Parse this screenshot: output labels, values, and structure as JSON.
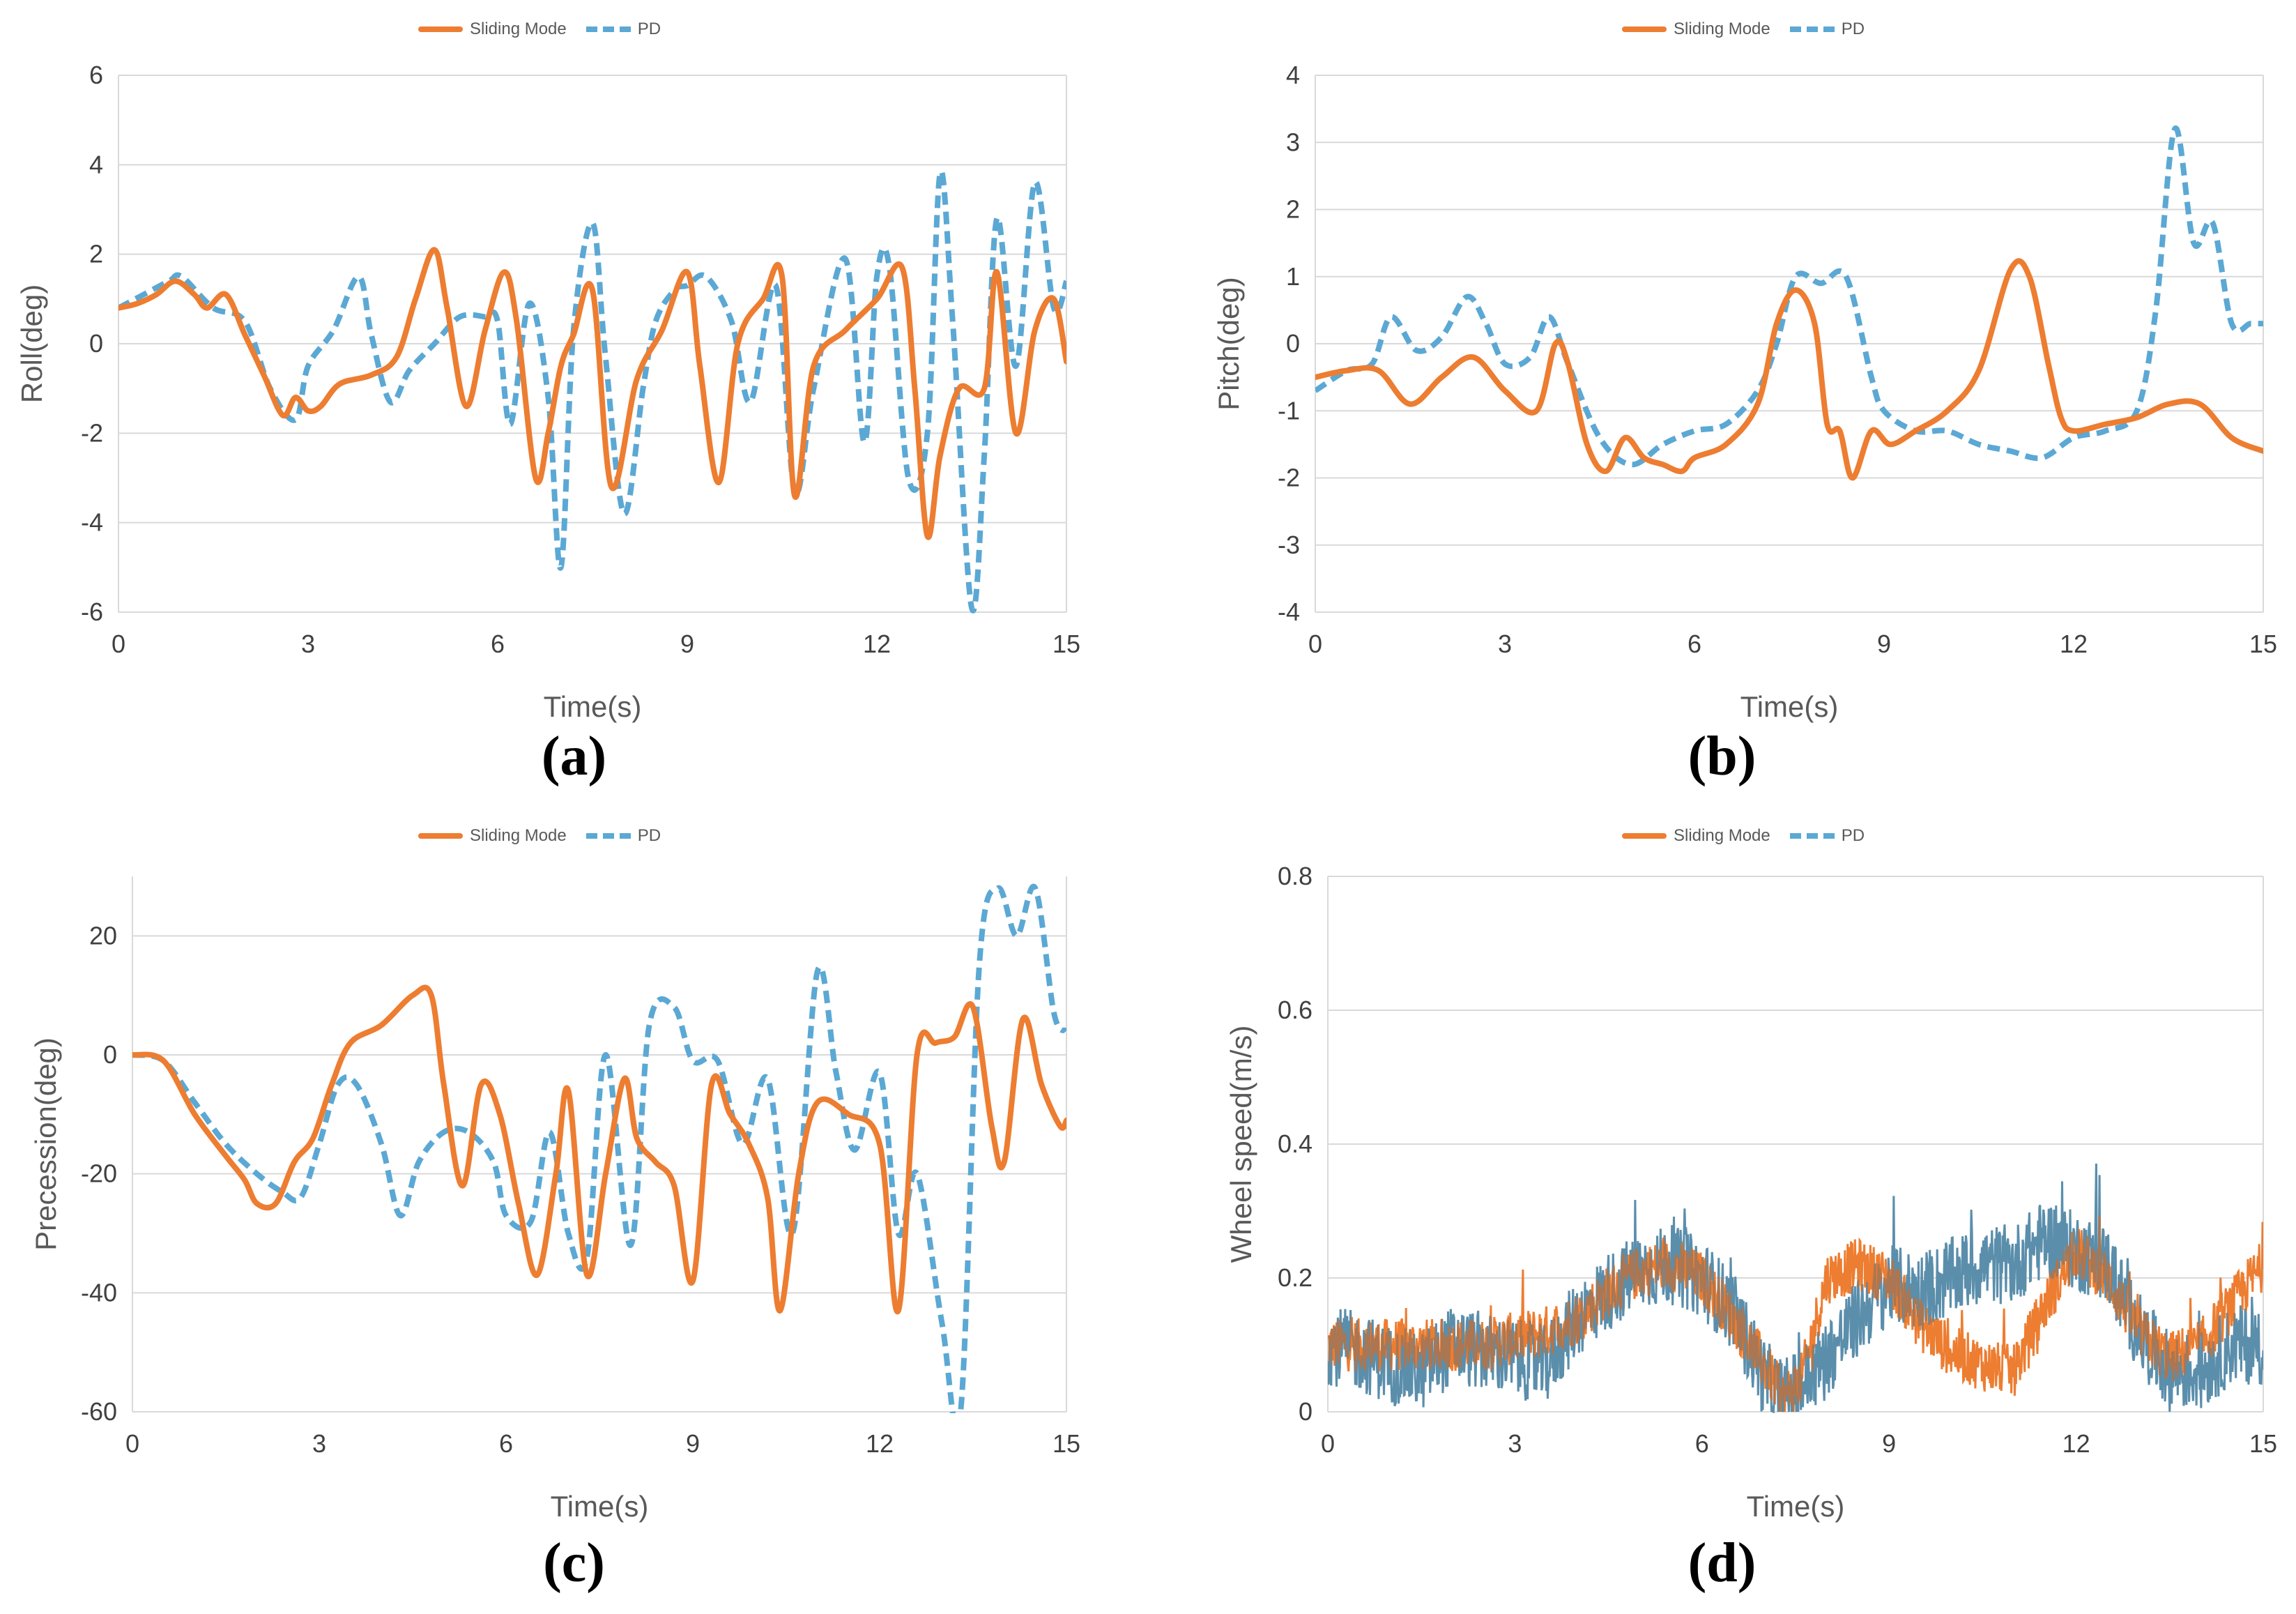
{
  "legend": {
    "sliding_label": "Sliding Mode",
    "pd_label": "PD"
  },
  "colors": {
    "sliding": "#ED7D31",
    "pd": "#5BA8D4",
    "grid": "#D9D9D9",
    "overlap": "#5A6E7A"
  },
  "captions": {
    "a": "(a)",
    "b": "(b)",
    "c": "(c)",
    "d": "(d)"
  },
  "chart_data": [
    {
      "id": "a",
      "type": "line",
      "title": "",
      "xlabel": "Time(s)",
      "ylabel": "Roll(deg)",
      "xlim": [
        0,
        15
      ],
      "ylim": [
        -6,
        6
      ],
      "xticks": [
        0,
        3,
        6,
        9,
        12,
        15
      ],
      "yticks": [
        -6,
        -4,
        -2,
        0,
        2,
        4,
        6
      ],
      "grid": true,
      "legend_position": "top-center",
      "series": [
        {
          "name": "Sliding Mode",
          "style": "solid",
          "x": [
            0,
            0.3,
            0.6,
            0.9,
            1.2,
            1.4,
            1.7,
            2.0,
            2.3,
            2.6,
            2.8,
            3.0,
            3.2,
            3.5,
            4.0,
            4.4,
            4.7,
            5.0,
            5.2,
            5.5,
            5.8,
            6.1,
            6.3,
            6.6,
            6.8,
            7.0,
            7.2,
            7.5,
            7.8,
            8.2,
            8.6,
            9.0,
            9.2,
            9.5,
            9.8,
            10.2,
            10.5,
            10.7,
            11.0,
            11.5,
            12.0,
            12.4,
            12.6,
            12.8,
            13.0,
            13.3,
            13.7,
            13.9,
            14.2,
            14.5,
            14.8,
            15.0
          ],
          "y": [
            0.8,
            0.9,
            1.1,
            1.4,
            1.1,
            0.8,
            1.1,
            0.2,
            -0.7,
            -1.6,
            -1.2,
            -1.5,
            -1.4,
            -0.9,
            -0.7,
            -0.3,
            1.0,
            2.1,
            0.8,
            -1.4,
            0.3,
            1.6,
            0.5,
            -3.0,
            -2.0,
            -0.5,
            0.2,
            1.2,
            -3.2,
            -0.8,
            0.3,
            1.6,
            -0.5,
            -3.1,
            0.0,
            1.0,
            1.5,
            -3.4,
            -0.5,
            0.3,
            1.0,
            1.7,
            -1.0,
            -4.3,
            -2.5,
            -1.0,
            -1.0,
            1.6,
            -2.0,
            0.3,
            1.0,
            -0.4
          ]
        },
        {
          "name": "PD",
          "style": "dashed",
          "x": [
            0,
            0.4,
            0.8,
            1.0,
            1.5,
            2.0,
            2.4,
            2.8,
            3.0,
            3.4,
            3.8,
            4.0,
            4.3,
            4.6,
            5.0,
            5.4,
            5.8,
            6.0,
            6.2,
            6.5,
            6.8,
            7.0,
            7.2,
            7.5,
            7.7,
            8.0,
            8.3,
            8.5,
            8.8,
            9.0,
            9.3,
            9.7,
            10.0,
            10.4,
            10.7,
            11.0,
            11.5,
            11.8,
            12.0,
            12.2,
            12.5,
            12.8,
            13.0,
            13.2,
            13.5,
            13.7,
            13.9,
            14.2,
            14.5,
            14.8,
            15.0
          ],
          "y": [
            0.8,
            1.1,
            1.4,
            1.5,
            0.8,
            0.5,
            -1.0,
            -1.7,
            -0.5,
            0.3,
            1.5,
            0.2,
            -1.3,
            -0.6,
            0.0,
            0.6,
            0.6,
            0.5,
            -1.8,
            0.9,
            -1.2,
            -5.0,
            0.3,
            2.7,
            -0.2,
            -3.8,
            -1.0,
            0.5,
            1.2,
            1.3,
            1.5,
            0.5,
            -1.3,
            1.3,
            -3.3,
            -1.0,
            1.9,
            -2.2,
            1.5,
            1.7,
            -3.0,
            -2.0,
            3.8,
            0.5,
            -5.9,
            -2.5,
            2.8,
            -0.5,
            3.6,
            0.8,
            1.4
          ]
        }
      ]
    },
    {
      "id": "b",
      "type": "line",
      "title": "",
      "xlabel": "Time(s)",
      "ylabel": "Pitch(deg)",
      "xlim": [
        0,
        15
      ],
      "ylim": [
        -4,
        4
      ],
      "xticks": [
        0,
        3,
        6,
        9,
        12,
        15
      ],
      "yticks": [
        -4,
        -3,
        -2,
        -1,
        0,
        1,
        2,
        3,
        4
      ],
      "grid": true,
      "legend_position": "top-center",
      "series": [
        {
          "name": "Sliding Mode",
          "style": "solid",
          "x": [
            0,
            0.5,
            1.0,
            1.5,
            2.0,
            2.5,
            3.0,
            3.5,
            3.8,
            4.0,
            4.3,
            4.6,
            4.9,
            5.2,
            5.5,
            5.8,
            6.0,
            6.5,
            7.0,
            7.3,
            7.6,
            7.9,
            8.1,
            8.3,
            8.5,
            8.8,
            9.1,
            9.5,
            10.0,
            10.5,
            11.0,
            11.3,
            11.6,
            11.8,
            12.0,
            12.5,
            13.0,
            13.5,
            14.0,
            14.5,
            15.0
          ],
          "y": [
            -0.5,
            -0.4,
            -0.4,
            -0.9,
            -0.5,
            -0.2,
            -0.7,
            -1.0,
            0.0,
            -0.3,
            -1.5,
            -1.9,
            -1.4,
            -1.7,
            -1.8,
            -1.9,
            -1.7,
            -1.5,
            -0.9,
            0.3,
            0.8,
            0.3,
            -1.2,
            -1.3,
            -2.0,
            -1.3,
            -1.5,
            -1.3,
            -1.0,
            -0.4,
            1.1,
            1.0,
            -0.3,
            -1.1,
            -1.3,
            -1.2,
            -1.1,
            -0.9,
            -0.9,
            -1.4,
            -1.6
          ]
        },
        {
          "name": "PD",
          "style": "dashed",
          "x": [
            0,
            0.5,
            0.9,
            1.2,
            1.6,
            2.0,
            2.4,
            2.7,
            3.0,
            3.4,
            3.7,
            4.0,
            4.5,
            5.0,
            5.5,
            6.0,
            6.5,
            7.0,
            7.3,
            7.6,
            8.0,
            8.4,
            8.8,
            9.0,
            9.5,
            10.0,
            10.5,
            11.0,
            11.5,
            12.0,
            12.5,
            13.0,
            13.3,
            13.6,
            13.9,
            14.2,
            14.5,
            14.8,
            15.0
          ],
          "y": [
            -0.7,
            -0.4,
            -0.3,
            0.4,
            -0.1,
            0.1,
            0.7,
            0.3,
            -0.3,
            -0.2,
            0.4,
            -0.3,
            -1.4,
            -1.8,
            -1.5,
            -1.3,
            -1.2,
            -0.7,
            0.0,
            1.0,
            0.9,
            1.0,
            -0.5,
            -1.0,
            -1.3,
            -1.3,
            -1.5,
            -1.6,
            -1.7,
            -1.4,
            -1.3,
            -1.0,
            0.5,
            3.2,
            1.5,
            1.8,
            0.3,
            0.3,
            0.3
          ]
        }
      ]
    },
    {
      "id": "c",
      "type": "line",
      "title": "",
      "xlabel": "Time(s)",
      "ylabel": "Precession(deg)",
      "xlim": [
        0,
        15
      ],
      "ylim": [
        -60,
        30
      ],
      "xticks": [
        0,
        3,
        6,
        9,
        12,
        15
      ],
      "yticks": [
        -60,
        -40,
        -20,
        0,
        20
      ],
      "grid": true,
      "legend_position": "top-center",
      "series": [
        {
          "name": "Sliding Mode",
          "style": "solid",
          "x": [
            0,
            0.5,
            1.0,
            1.5,
            1.8,
            2.0,
            2.3,
            2.6,
            2.9,
            3.2,
            3.5,
            4.0,
            4.5,
            4.8,
            5.0,
            5.3,
            5.6,
            5.9,
            6.2,
            6.5,
            6.8,
            7.0,
            7.3,
            7.6,
            7.9,
            8.1,
            8.4,
            8.7,
            9.0,
            9.3,
            9.6,
            9.9,
            10.2,
            10.4,
            10.7,
            11.0,
            11.5,
            12.0,
            12.3,
            12.6,
            12.9,
            13.2,
            13.5,
            13.8,
            14.0,
            14.3,
            14.6,
            14.9,
            15.0
          ],
          "y": [
            0,
            -1,
            -10,
            -17,
            -21,
            -25,
            -25,
            -18,
            -14,
            -5,
            2,
            5,
            10,
            10,
            -5,
            -22,
            -5,
            -10,
            -25,
            -37,
            -20,
            -6,
            -37,
            -20,
            -4,
            -14,
            -18,
            -22,
            -38,
            -5,
            -10,
            -15,
            -24,
            -43,
            -20,
            -8,
            -10,
            -15,
            -43,
            0,
            2,
            3,
            8,
            -12,
            -18,
            6,
            -5,
            -12,
            -11
          ]
        },
        {
          "name": "PD",
          "style": "dashed",
          "x": [
            0,
            0.5,
            1.0,
            1.5,
            2.0,
            2.4,
            2.7,
            3.0,
            3.3,
            3.6,
            4.0,
            4.3,
            4.6,
            5.0,
            5.4,
            5.8,
            6.0,
            6.4,
            6.7,
            7.0,
            7.3,
            7.6,
            8.0,
            8.3,
            8.7,
            9.0,
            9.4,
            9.8,
            10.2,
            10.6,
            11.0,
            11.3,
            11.6,
            12.0,
            12.3,
            12.6,
            13.0,
            13.3,
            13.6,
            13.9,
            14.2,
            14.5,
            14.8,
            15.0
          ],
          "y": [
            0,
            -1,
            -8,
            -15,
            -20,
            -23,
            -24,
            -15,
            -5,
            -5,
            -15,
            -27,
            -18,
            -13,
            -13,
            -18,
            -27,
            -28,
            -13,
            -30,
            -34,
            0,
            -32,
            5,
            8,
            -1,
            -1,
            -15,
            -4,
            -30,
            14,
            -3,
            -16,
            -3,
            -30,
            -20,
            -45,
            -60,
            15,
            28,
            20,
            28,
            7,
            4
          ]
        }
      ]
    },
    {
      "id": "d",
      "type": "line",
      "title": "",
      "xlabel": "Time(s)",
      "ylabel": "Wheel speed(m/s)",
      "xlim": [
        0,
        15
      ],
      "ylim": [
        0,
        0.8
      ],
      "xticks": [
        0,
        3,
        6,
        9,
        12,
        15
      ],
      "yticks": [
        0,
        0.2,
        0.4,
        0.6,
        0.8
      ],
      "grid": true,
      "legend_position": "top-center",
      "series": [
        {
          "name": "Sliding Mode",
          "style": "noisy-band",
          "x": [
            0,
            0.5,
            1.0,
            1.5,
            2.0,
            2.5,
            3.0,
            3.5,
            4.0,
            4.5,
            5.0,
            5.5,
            6.0,
            6.5,
            7.0,
            7.3,
            7.6,
            8.0,
            8.5,
            9.0,
            9.5,
            10.0,
            10.5,
            11.0,
            11.5,
            12.0,
            12.5,
            13.0,
            13.5,
            14.0,
            14.5,
            15.0
          ],
          "y": [
            0.1,
            0.1,
            0.1,
            0.1,
            0.1,
            0.1,
            0.11,
            0.12,
            0.14,
            0.18,
            0.21,
            0.22,
            0.2,
            0.14,
            0.07,
            0.02,
            0.05,
            0.2,
            0.22,
            0.2,
            0.13,
            0.09,
            0.07,
            0.06,
            0.16,
            0.24,
            0.2,
            0.12,
            0.08,
            0.1,
            0.16,
            0.22
          ],
          "spread": 0.04
        },
        {
          "name": "PD",
          "style": "noisy-band",
          "x": [
            0,
            0.5,
            1.0,
            1.5,
            2.0,
            2.5,
            3.0,
            3.5,
            4.0,
            4.5,
            5.0,
            5.5,
            6.0,
            6.5,
            7.0,
            7.3,
            7.6,
            8.0,
            8.5,
            9.0,
            9.5,
            10.0,
            10.5,
            11.0,
            11.5,
            12.0,
            12.5,
            13.0,
            13.5,
            14.0,
            14.5,
            15.0
          ],
          "y": [
            0.1,
            0.09,
            0.07,
            0.06,
            0.1,
            0.09,
            0.08,
            0.07,
            0.14,
            0.18,
            0.21,
            0.22,
            0.2,
            0.15,
            0.05,
            0.02,
            0.04,
            0.08,
            0.14,
            0.19,
            0.18,
            0.2,
            0.22,
            0.22,
            0.26,
            0.24,
            0.22,
            0.12,
            0.06,
            0.06,
            0.1,
            0.1
          ],
          "spread": 0.06
        }
      ]
    }
  ]
}
